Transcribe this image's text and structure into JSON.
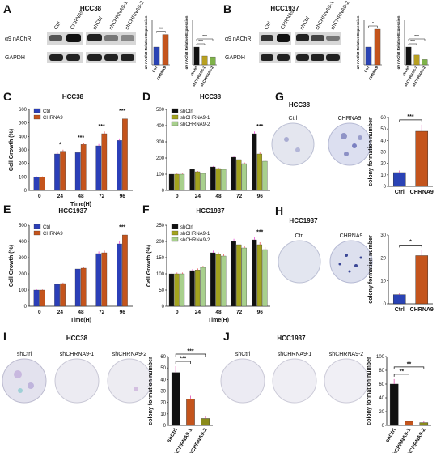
{
  "panels": {
    "A": {
      "letter": "A",
      "title": "HCC38",
      "lane_labels": [
        "Ctrl",
        "CHRNA9",
        "shCtrl",
        "shCHRNA9-1",
        "shCHRNA9-2"
      ],
      "row_labels": [
        "α9 nAChR",
        "GAPDH"
      ]
    },
    "B": {
      "letter": "B",
      "title": "HCC1937",
      "lane_labels": [
        "Ctrl",
        "CHRNA9",
        "shCtrl",
        "shCHRNA9-1",
        "shCHRNA9-2"
      ],
      "row_labels": [
        "α9 nAChR",
        "GAPDH"
      ]
    },
    "C": {
      "letter": "C",
      "title": "HCC38",
      "ylabel": "Cell Growth  (%)",
      "xlabel": "Time(H)",
      "legend": [
        "Ctrl",
        "CHRNA9"
      ]
    },
    "D": {
      "letter": "D",
      "title": "HCC38",
      "legend": [
        "shCtrl",
        "shCHRNA9-1",
        "shCHRNA9-2"
      ]
    },
    "E": {
      "letter": "E",
      "title": "HCC1937",
      "ylabel": "Cell Growth  (%)",
      "xlabel": "Time(H)",
      "legend": [
        "Ctrl",
        "CHRNA9"
      ]
    },
    "F": {
      "letter": "F",
      "title": "HCC1937",
      "ylabel": "Cell Growth  (%)",
      "xlabel": "Time(H)",
      "legend": [
        "shCtrl",
        "shCHRNA9-1",
        "shCHRNA9-2"
      ]
    },
    "G": {
      "letter": "G",
      "title": "HCC38",
      "plate_labels": [
        "Ctrl",
        "CHRNA9"
      ]
    },
    "H": {
      "letter": "H",
      "title": "HCC1937",
      "plate_labels": [
        "Ctrl",
        "CHRNA9"
      ]
    },
    "I": {
      "letter": "I",
      "title": "HCC38",
      "plate_labels": [
        "shCtrl",
        "shCHRNA9-1",
        "shCHRNA9-2"
      ]
    },
    "J": {
      "letter": "J",
      "title": "HCC1937",
      "plate_labels": [
        "shCtrl",
        "shCHRNA9-1",
        "shCHRNA9-2"
      ]
    }
  },
  "colors": {
    "ctrl": "#2b3fb8",
    "chrna9": "#c4541c",
    "black": "#111111",
    "olive": "#a3a31e",
    "green": "#a8d08d",
    "bg_bar": "#2a43b5"
  },
  "small_charts": {
    "A_over": {
      "ylabel": "α9 nAChR Relative Expression",
      "categories": [
        "Ctrl",
        "CHRNA9"
      ],
      "values": [
        1.0,
        1.7
      ],
      "sig": "***"
    },
    "A_kd": {
      "ylabel": "α9 nAChR Relative Expression",
      "categories": [
        "shCtrl",
        "shCHRNA9-1",
        "shCHRNA9-2"
      ],
      "values": [
        1.0,
        0.5,
        0.45
      ],
      "sig": [
        "***",
        "***"
      ]
    },
    "B_over": {
      "ylabel": "α9 nAChR Relative Expression",
      "categories": [
        "Ctrl",
        "CHRNA9"
      ],
      "values": [
        1.0,
        2.0
      ],
      "sig": "*"
    },
    "B_kd": {
      "ylabel": "α9 nAChR Relative Expression",
      "categories": [
        "shCtrl",
        "shCHRNA9-1",
        "shCHRNA9-2"
      ],
      "values": [
        1.0,
        0.55,
        0.3
      ],
      "sig": [
        "***",
        "***"
      ]
    }
  },
  "chart_data": [
    {
      "id": "C",
      "type": "bar",
      "x": [
        "0",
        "24",
        "48",
        "72",
        "96"
      ],
      "series": [
        {
          "name": "Ctrl",
          "values": [
            100,
            270,
            280,
            330,
            370
          ]
        },
        {
          "name": "CHRNA9",
          "values": [
            100,
            290,
            340,
            420,
            530
          ]
        }
      ],
      "ylim": [
        0,
        600
      ],
      "yticks": [
        0,
        100,
        200,
        300,
        400,
        500,
        600
      ],
      "sig": [
        "",
        "*",
        "***",
        "***",
        "***"
      ]
    },
    {
      "id": "D",
      "type": "bar",
      "x": [
        "0",
        "24",
        "48",
        "72",
        "96"
      ],
      "series": [
        {
          "name": "shCtrl",
          "values": [
            100,
            130,
            145,
            205,
            350
          ]
        },
        {
          "name": "shCHRNA9-1",
          "values": [
            100,
            115,
            135,
            190,
            225
          ]
        },
        {
          "name": "shCHRNA9-2",
          "values": [
            100,
            105,
            130,
            165,
            180
          ]
        }
      ],
      "ylim": [
        0,
        500
      ],
      "yticks": [
        0,
        100,
        200,
        300,
        400,
        500
      ],
      "sig": [
        "",
        "",
        "",
        "",
        "***"
      ]
    },
    {
      "id": "E",
      "type": "bar",
      "x": [
        "0",
        "24",
        "48",
        "72",
        "96"
      ],
      "series": [
        {
          "name": "Ctrl",
          "values": [
            100,
            135,
            230,
            325,
            385
          ]
        },
        {
          "name": "CHRNA9",
          "values": [
            100,
            140,
            235,
            330,
            440
          ]
        }
      ],
      "ylim": [
        0,
        500
      ],
      "yticks": [
        0,
        100,
        200,
        300,
        400,
        500
      ],
      "sig": [
        "",
        "",
        "",
        "",
        "***"
      ]
    },
    {
      "id": "F",
      "type": "bar",
      "x": [
        "0",
        "24",
        "48",
        "72",
        "96"
      ],
      "series": [
        {
          "name": "shCtrl",
          "values": [
            100,
            110,
            165,
            200,
            205
          ]
        },
        {
          "name": "shCHRNA9-1",
          "values": [
            100,
            112,
            160,
            190,
            190
          ]
        },
        {
          "name": "shCHRNA9-2",
          "values": [
            100,
            120,
            155,
            180,
            175
          ]
        }
      ],
      "ylim": [
        0,
        250
      ],
      "yticks": [
        0,
        50,
        100,
        150,
        200,
        250
      ],
      "sig": [
        "",
        "",
        "",
        "",
        "***"
      ]
    },
    {
      "id": "G",
      "type": "bar",
      "categories": [
        "Ctrl",
        "CHRNA9"
      ],
      "values": [
        12,
        48
      ],
      "ylim": [
        0,
        60
      ],
      "yticks": [
        0,
        10,
        20,
        30,
        40,
        50,
        60
      ],
      "ylabel": "colony formation number",
      "sig": "***"
    },
    {
      "id": "H",
      "type": "bar",
      "categories": [
        "Ctrl",
        "CHRNA9"
      ],
      "values": [
        4,
        21
      ],
      "ylim": [
        0,
        30
      ],
      "yticks": [
        0,
        10,
        20,
        30
      ],
      "ylabel": "colony formation number",
      "sig": "*"
    },
    {
      "id": "I",
      "type": "bar",
      "categories": [
        "shCtrl",
        "shCHRNA9-1",
        "shCHRNA9-2"
      ],
      "values": [
        46,
        23,
        6
      ],
      "ylim": [
        0,
        60
      ],
      "yticks": [
        0,
        10,
        20,
        30,
        40,
        50,
        60
      ],
      "ylabel": "colony formation number",
      "sig": [
        "***",
        "***"
      ]
    },
    {
      "id": "J",
      "type": "bar",
      "categories": [
        "shCtrl",
        "shCHRNA9-1",
        "shCHRNA9-2"
      ],
      "values": [
        60,
        6,
        4
      ],
      "ylim": [
        0,
        100
      ],
      "yticks": [
        0,
        20,
        40,
        60,
        80,
        100
      ],
      "ylabel": "colony formation number",
      "sig": [
        "**",
        "**"
      ]
    }
  ]
}
